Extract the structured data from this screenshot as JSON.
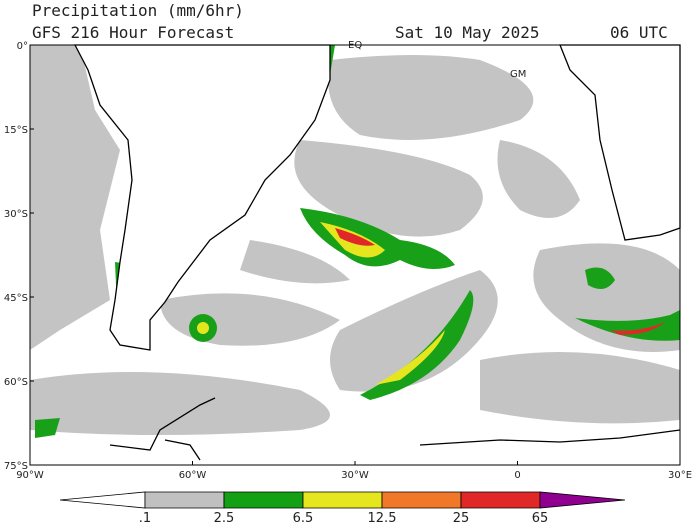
{
  "header": {
    "title": "Precipitation (mm/6hr)",
    "subtitle": "GFS 216 Hour Forecast",
    "date": "Sat 10 May 2025",
    "time": "06 UTC"
  },
  "map": {
    "lat_labels": [
      "0°",
      "15°S",
      "30°S",
      "45°S",
      "60°S",
      "75°S"
    ],
    "lon_labels": [
      "90°W",
      "60°W",
      "30°W",
      "0",
      "30°E"
    ],
    "place_labels": [
      "EQ",
      "GM"
    ]
  },
  "colorbar": {
    "labels": [
      ".1",
      "2.5",
      "6.5",
      "12.5",
      "25",
      "65"
    ],
    "colors": [
      "#ffffff",
      "#c0c0c0",
      "#14a014",
      "#e6e61e",
      "#f07828",
      "#e02828",
      "#900090"
    ]
  }
}
